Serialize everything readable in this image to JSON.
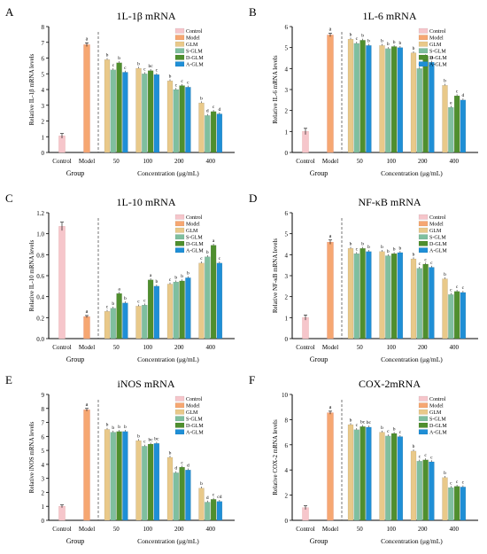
{
  "colors": {
    "Control": "#f6c6cb",
    "Model": "#f6a772",
    "GLM": "#e9c98a",
    "S-GLM": "#7fbf9f",
    "D-GLM": "#4f8f2e",
    "A-GLM": "#1f8fd6"
  },
  "chart_data": [
    {
      "type": "bar",
      "panel": "A",
      "title": "1L-1β mRNA",
      "ylabel": "Relative IL-1β mRNA levels",
      "xlabel": "Concentration (μg/mL)",
      "group_label": "Group",
      "ylim": [
        0,
        8
      ],
      "yticks": [
        0,
        1,
        2,
        3,
        4,
        5,
        6,
        7,
        8
      ],
      "legend": [
        "Control",
        "Model",
        "GLM",
        "S-GLM",
        "D-GLM",
        "A-GLM"
      ],
      "control": {
        "label": "Control",
        "value": 1.05,
        "err": 0.15
      },
      "model": {
        "label": "Model",
        "value": 6.85,
        "err": 0.12,
        "letter": "a"
      },
      "categories": [
        "50",
        "100",
        "200",
        "400"
      ],
      "series": [
        {
          "name": "GLM",
          "values": [
            5.9,
            5.35,
            4.55,
            3.15
          ],
          "letters": [
            "b",
            "b",
            "b",
            "b"
          ]
        },
        {
          "name": "S-GLM",
          "values": [
            5.25,
            5.0,
            4.0,
            2.35
          ],
          "letters": [
            "c",
            "c",
            "c",
            "d"
          ]
        },
        {
          "name": "D-GLM",
          "values": [
            5.7,
            5.2,
            4.25,
            2.6
          ],
          "letters": [
            "b",
            "bc",
            "c",
            "c"
          ]
        },
        {
          "name": "A-GLM",
          "values": [
            5.1,
            4.95,
            4.15,
            2.45
          ],
          "letters": [
            "c",
            "c",
            "c",
            "d"
          ]
        }
      ]
    },
    {
      "type": "bar",
      "panel": "B",
      "title": "1L-6 mRNA",
      "ylabel": "Relative IL-6 mRNA levels",
      "xlabel": "Concentration (μg/mL)",
      "group_label": "Group",
      "ylim": [
        0,
        6
      ],
      "yticks": [
        0,
        1,
        2,
        3,
        4,
        5,
        6
      ],
      "legend": [
        "Control",
        "Model",
        "GLM",
        "S-GLM",
        "D-GLM",
        "A-GLM"
      ],
      "control": {
        "label": "Control",
        "value": 1.0,
        "err": 0.15
      },
      "model": {
        "label": "Model",
        "value": 5.6,
        "err": 0.08,
        "letter": "a"
      },
      "categories": [
        "50",
        "100",
        "200",
        "400"
      ],
      "series": [
        {
          "name": "GLM",
          "values": [
            5.4,
            5.1,
            4.75,
            3.2
          ],
          "letters": [
            "b",
            "b",
            "b",
            "b"
          ]
        },
        {
          "name": "S-GLM",
          "values": [
            5.2,
            4.95,
            4.0,
            2.15
          ],
          "letters": [
            "c",
            "b",
            "e",
            "e"
          ]
        },
        {
          "name": "D-GLM",
          "values": [
            5.35,
            5.05,
            4.6,
            2.7
          ],
          "letters": [
            "b",
            "b",
            "c",
            "c"
          ]
        },
        {
          "name": "A-GLM",
          "values": [
            5.1,
            5.0,
            4.3,
            2.5
          ],
          "letters": [
            "b",
            "b",
            "d",
            "d"
          ]
        }
      ]
    },
    {
      "type": "bar",
      "panel": "C",
      "title": "1L-10 mRNA",
      "ylabel": "Relative IL-10 mRNA levels",
      "xlabel": "Concentration (μg/mL)",
      "group_label": "Group",
      "ylim": [
        0,
        1.2
      ],
      "yticks": [
        0.0,
        0.2,
        0.4,
        0.6,
        0.8,
        1.0,
        1.2
      ],
      "legend": [
        "Control",
        "Model",
        "GLM",
        "S-GLM",
        "D-GLM",
        "A-GLM"
      ],
      "control": {
        "label": "Control",
        "value": 1.07,
        "err": 0.04
      },
      "model": {
        "label": "Model",
        "value": 0.21,
        "err": 0.01,
        "letter": "a"
      },
      "categories": [
        "50",
        "100",
        "200",
        "400"
      ],
      "series": [
        {
          "name": "GLM",
          "values": [
            0.26,
            0.31,
            0.52,
            0.72
          ],
          "letters": [
            "c",
            "c",
            "c",
            "c"
          ]
        },
        {
          "name": "S-GLM",
          "values": [
            0.29,
            0.32,
            0.54,
            0.78
          ],
          "letters": [
            "b",
            "c",
            "b",
            "b"
          ]
        },
        {
          "name": "D-GLM",
          "values": [
            0.43,
            0.56,
            0.55,
            0.89
          ],
          "letters": [
            "a",
            "a",
            "b",
            "a"
          ]
        },
        {
          "name": "A-GLM",
          "values": [
            0.34,
            0.5,
            0.58,
            0.72
          ],
          "letters": [
            "b",
            "b",
            "b",
            "c"
          ]
        }
      ]
    },
    {
      "type": "bar",
      "panel": "D",
      "title": "NF-κB mRNA",
      "ylabel": "Relative NF-κB mRNA levels",
      "xlabel": "Concentration (μg/mL)",
      "group_label": "Group",
      "ylim": [
        0,
        6
      ],
      "yticks": [
        0,
        1,
        2,
        3,
        4,
        5,
        6
      ],
      "legend": [
        "Control",
        "Model",
        "GLM",
        "S-GLM",
        "D-GLM",
        "A-GLM"
      ],
      "control": {
        "label": "Control",
        "value": 1.0,
        "err": 0.12
      },
      "model": {
        "label": "Model",
        "value": 4.6,
        "err": 0.1,
        "letter": "a"
      },
      "categories": [
        "50",
        "100",
        "200",
        "400"
      ],
      "series": [
        {
          "name": "GLM",
          "values": [
            4.3,
            4.15,
            3.8,
            2.85
          ],
          "letters": [
            "b",
            "b",
            "b",
            "b"
          ]
        },
        {
          "name": "S-GLM",
          "values": [
            4.05,
            3.95,
            3.35,
            2.1
          ],
          "letters": [
            "c",
            "b",
            "c",
            "c"
          ]
        },
        {
          "name": "D-GLM",
          "values": [
            4.3,
            4.05,
            3.55,
            2.25
          ],
          "letters": [
            "b",
            "b",
            "c",
            "c"
          ]
        },
        {
          "name": "A-GLM",
          "values": [
            4.15,
            4.1,
            3.4,
            2.2
          ],
          "letters": [
            "b",
            "b",
            "c",
            "c"
          ]
        }
      ]
    },
    {
      "type": "bar",
      "panel": "E",
      "title": "iNOS mRNA",
      "ylabel": "Relative iNOS mRNA levels",
      "xlabel": "Concentration (μg/mL)",
      "group_label": "Group",
      "ylim": [
        0,
        9
      ],
      "yticks": [
        0,
        1,
        2,
        3,
        4,
        5,
        6,
        7,
        8,
        9
      ],
      "legend": [
        "Control",
        "Model",
        "GLM",
        "S-GLM",
        "D-GLM",
        "A-GLM"
      ],
      "control": {
        "label": "Control",
        "value": 1.0,
        "err": 0.1
      },
      "model": {
        "label": "Model",
        "value": 7.9,
        "err": 0.1,
        "letter": "a"
      },
      "categories": [
        "50",
        "100",
        "200",
        "400"
      ],
      "series": [
        {
          "name": "GLM",
          "values": [
            6.5,
            5.7,
            4.5,
            2.3
          ],
          "letters": [
            "b",
            "b",
            "b",
            "b"
          ]
        },
        {
          "name": "S-GLM",
          "values": [
            6.3,
            5.3,
            3.4,
            1.3
          ],
          "letters": [
            "b",
            "c",
            "d",
            "d"
          ]
        },
        {
          "name": "D-GLM",
          "values": [
            6.35,
            5.45,
            3.8,
            1.5
          ],
          "letters": [
            "b",
            "bc",
            "c",
            "c"
          ]
        },
        {
          "name": "A-GLM",
          "values": [
            6.35,
            5.5,
            3.6,
            1.35
          ],
          "letters": [
            "b",
            "bc",
            "d",
            "cd"
          ]
        }
      ]
    },
    {
      "type": "bar",
      "panel": "F",
      "title": "COX-2mRNA",
      "ylabel": "Relative COX-2 mRNA levels",
      "xlabel": "Concentration (μg/mL)",
      "group_label": "Group",
      "ylim": [
        0,
        10
      ],
      "yticks": [
        0,
        2,
        4,
        6,
        8,
        10
      ],
      "legend": [
        "Control",
        "Model",
        "GLM",
        "S-GLM",
        "D-GLM",
        "A-GLM"
      ],
      "control": {
        "label": "Control",
        "value": 1.0,
        "err": 0.15
      },
      "model": {
        "label": "Model",
        "value": 8.55,
        "err": 0.12,
        "letter": "a"
      },
      "categories": [
        "50",
        "100",
        "200",
        "400"
      ],
      "series": [
        {
          "name": "GLM",
          "values": [
            7.6,
            7.0,
            5.5,
            3.4
          ],
          "letters": [
            "b",
            "b",
            "b",
            "b"
          ]
        },
        {
          "name": "S-GLM",
          "values": [
            7.2,
            6.7,
            4.7,
            2.6
          ],
          "letters": [
            "c",
            "c",
            "c",
            "c"
          ]
        },
        {
          "name": "D-GLM",
          "values": [
            7.45,
            6.9,
            4.8,
            2.7
          ],
          "letters": [
            "bc",
            "b",
            "c",
            "c"
          ]
        },
        {
          "name": "A-GLM",
          "values": [
            7.4,
            6.65,
            4.65,
            2.65
          ],
          "letters": [
            "bc",
            "c",
            "c",
            "c"
          ]
        }
      ]
    }
  ]
}
